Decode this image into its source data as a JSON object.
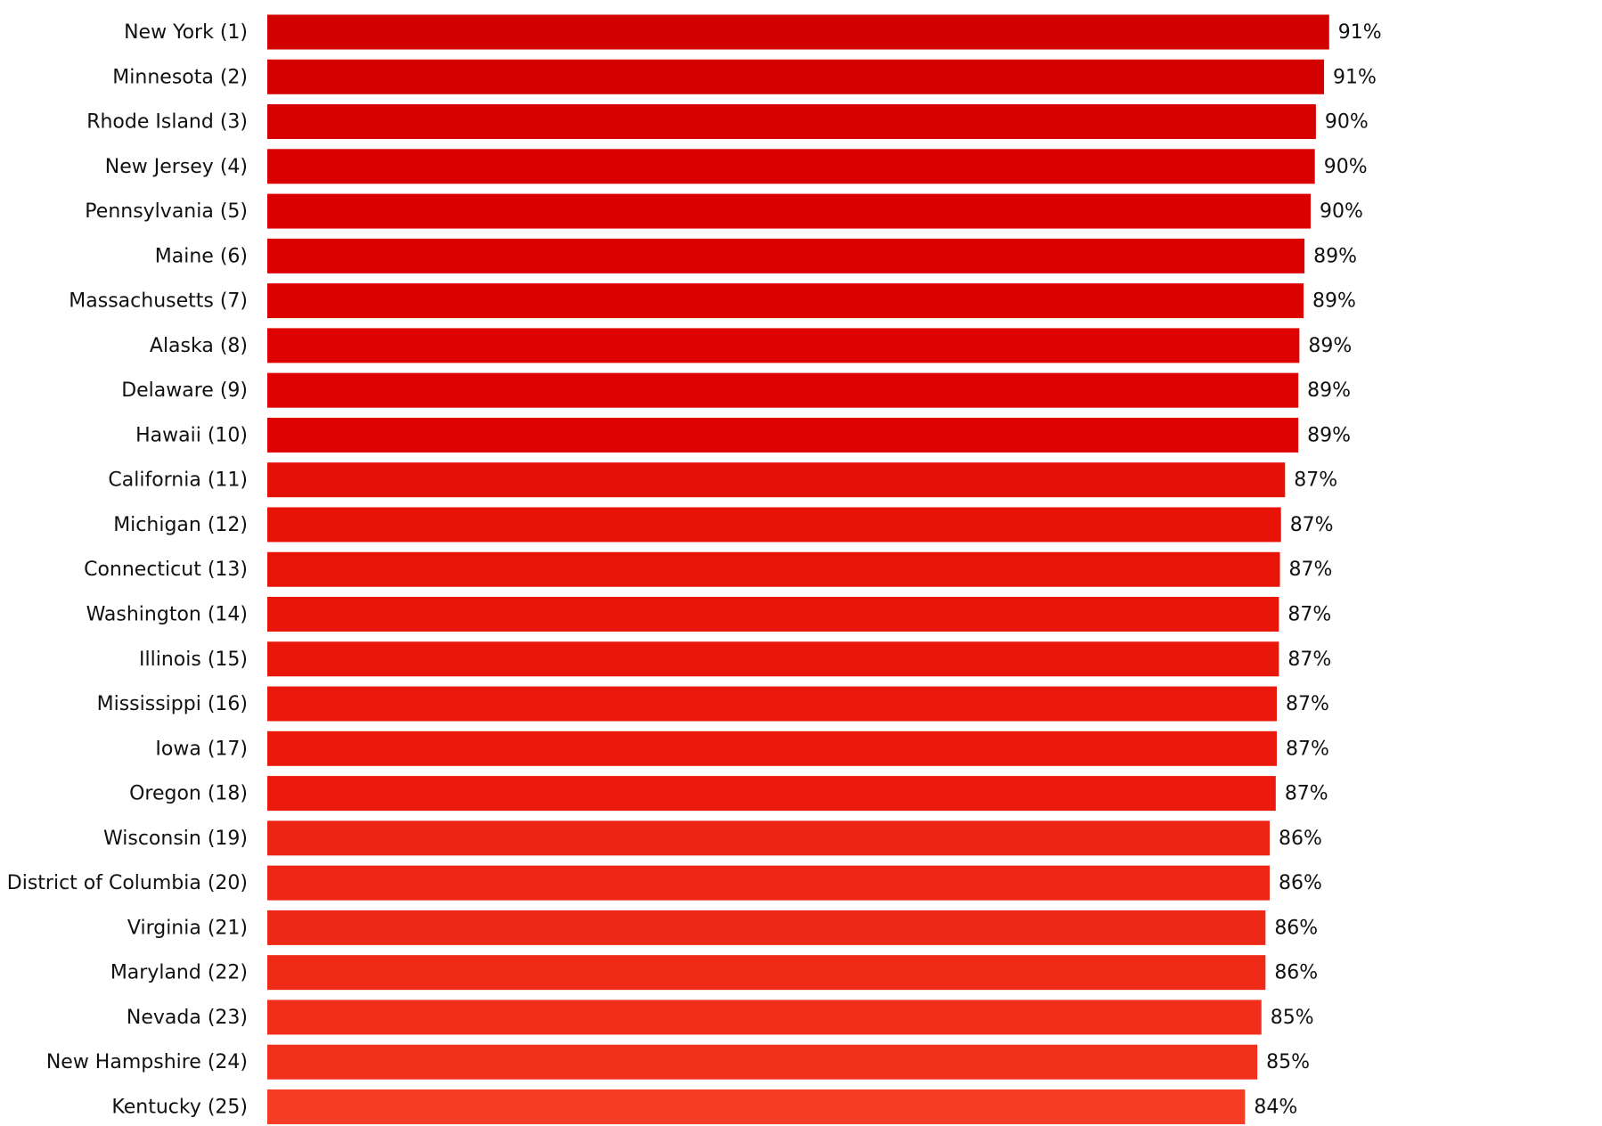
{
  "chart_data": {
    "type": "hbar",
    "categories": [
      "New York (1)",
      "Minnesota (2)",
      "Rhode Island (3)",
      "New Jersey (4)",
      "Pennsylvania (5)",
      "Maine (6)",
      "Massachusetts (7)",
      "Alaska (8)",
      "Delaware (9)",
      "Hawaii (10)",
      "California (11)",
      "Michigan (12)",
      "Connecticut (13)",
      "Washington (14)",
      "Illinois (15)",
      "Mississippi (16)",
      "Iowa (17)",
      "Oregon (18)",
      "Wisconsin (19)",
      "District of Columbia (20)",
      "Virginia (21)",
      "Maryland (22)",
      "Nevada (23)",
      "New Hampshire (24)",
      "Kentucky (25)"
    ],
    "values": [
      91.22,
      90.78,
      90.08,
      89.99,
      89.63,
      89.1,
      89.02,
      88.66,
      88.57,
      88.57,
      87.43,
      87.08,
      86.99,
      86.9,
      86.9,
      86.72,
      86.72,
      86.63,
      86.11,
      86.11,
      85.75,
      85.75,
      85.4,
      85.05,
      83.99
    ],
    "value_labels": [
      "91%",
      "91%",
      "90%",
      "90%",
      "90%",
      "89%",
      "89%",
      "89%",
      "89%",
      "89%",
      "87%",
      "87%",
      "87%",
      "87%",
      "87%",
      "87%",
      "87%",
      "87%",
      "86%",
      "86%",
      "86%",
      "86%",
      "85%",
      "85%",
      "84%"
    ],
    "colors": [
      "#d20000",
      "#d40000",
      "#d70000",
      "#d80000",
      "#da0000",
      "#db0101",
      "#dc0101",
      "#de0202",
      "#de0202",
      "#df0202",
      "#e51006",
      "#e71307",
      "#e81408",
      "#e91509",
      "#e9160a",
      "#ea180b",
      "#ea190c",
      "#eb1a0c",
      "#ec2414",
      "#ed2615",
      "#ee2816",
      "#ef2a17",
      "#f02e19",
      "#f1301b",
      "#f53d25"
    ],
    "xlim": [
      0,
      100
    ]
  }
}
